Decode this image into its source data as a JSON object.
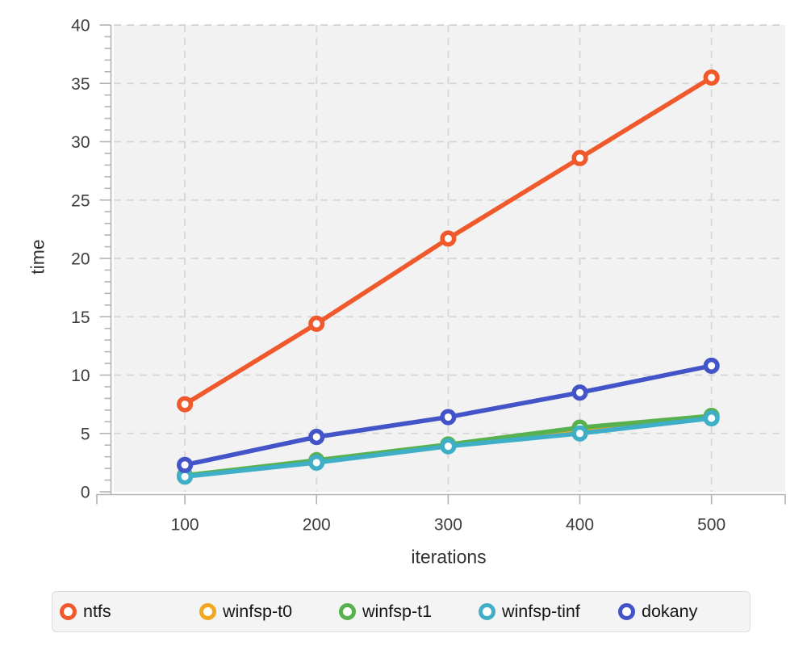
{
  "chart_data": {
    "type": "line",
    "title": "",
    "xlabel": "iterations",
    "ylabel": "time",
    "x": [
      100,
      200,
      300,
      400,
      500
    ],
    "series": [
      {
        "name": "ntfs",
        "color": "#F0592C",
        "values": [
          7.5,
          14.4,
          21.7,
          28.6,
          35.5
        ]
      },
      {
        "name": "winfsp-t0",
        "color": "#F3A71E",
        "values": [
          1.4,
          2.6,
          4.0,
          5.3,
          6.4
        ]
      },
      {
        "name": "winfsp-t1",
        "color": "#57B14F",
        "values": [
          1.4,
          2.7,
          4.05,
          5.5,
          6.5
        ]
      },
      {
        "name": "winfsp-tinf",
        "color": "#3FAEC7",
        "values": [
          1.3,
          2.5,
          3.9,
          5.0,
          6.3
        ]
      },
      {
        "name": "dokany",
        "color": "#4353C8",
        "values": [
          2.3,
          4.7,
          6.4,
          8.5,
          10.8
        ]
      }
    ],
    "x_ticks": [
      100,
      200,
      300,
      400,
      500
    ],
    "y_ticks_major": [
      0,
      5,
      10,
      15,
      20,
      25,
      30,
      35,
      40
    ],
    "y_minor_step": 1,
    "xlim": [
      46,
      556
    ],
    "ylim": [
      0,
      40
    ],
    "grid": "dashed",
    "legend_position": "bottom"
  },
  "style": {
    "plot_background": "#f2f2f2",
    "grid_color": "#d8d8d8",
    "axis_color": "#b3b3b3",
    "tick_label_color": "#3d3d3d",
    "page_background": "#ffffff"
  }
}
